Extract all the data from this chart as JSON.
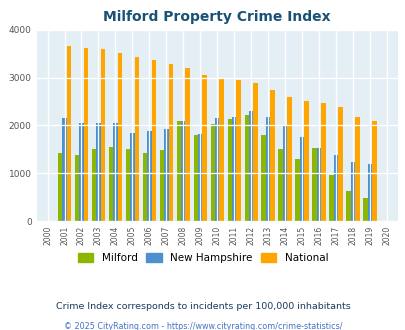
{
  "title": "Milford Property Crime Index",
  "years": [
    2000,
    2001,
    2002,
    2003,
    2004,
    2005,
    2006,
    2007,
    2008,
    2009,
    2010,
    2011,
    2012,
    2013,
    2014,
    2015,
    2016,
    2017,
    2018,
    2019,
    2020
  ],
  "milford": [
    0,
    1430,
    1390,
    1510,
    1540,
    1510,
    1430,
    1480,
    2090,
    1790,
    2020,
    2140,
    2210,
    1800,
    1510,
    1300,
    1530,
    970,
    620,
    490,
    0
  ],
  "new_hampshire": [
    0,
    2150,
    2050,
    2060,
    2060,
    1840,
    1890,
    1930,
    2090,
    1830,
    2160,
    2170,
    2300,
    2180,
    1980,
    1750,
    1530,
    1390,
    1240,
    1200,
    0
  ],
  "national": [
    0,
    3650,
    3620,
    3600,
    3520,
    3430,
    3360,
    3280,
    3210,
    3050,
    2960,
    2940,
    2890,
    2740,
    2600,
    2500,
    2460,
    2390,
    2180,
    2100,
    0
  ],
  "milford_color": "#8DB600",
  "nh_color": "#4d90d0",
  "national_color": "#FFA500",
  "bg_color": "#e4eff5",
  "ylim": [
    0,
    4000
  ],
  "subtitle": "Crime Index corresponds to incidents per 100,000 inhabitants",
  "footer": "© 2025 CityRating.com - https://www.cityrating.com/crime-statistics/",
  "title_color": "#1a5276",
  "subtitle_color": "#1a3a5c",
  "footer_color": "#4472C4"
}
